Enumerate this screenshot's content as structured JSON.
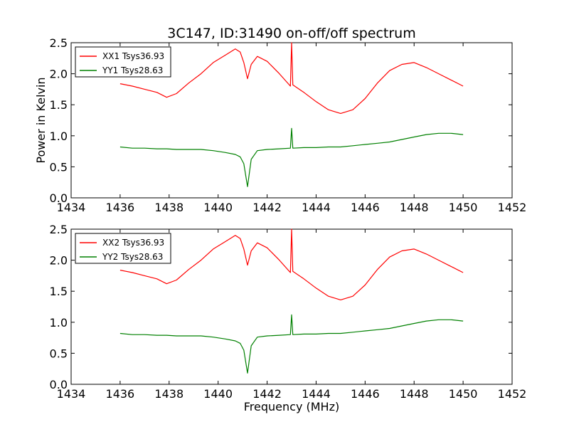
{
  "chart_data": [
    {
      "type": "line",
      "title": "3C147, ID:31490 on-off/off spectrum",
      "xlabel": "",
      "ylabel": "Power in Kelvin",
      "xlim": [
        1434,
        1452
      ],
      "ylim": [
        0.0,
        2.5
      ],
      "xticks": [
        "1434",
        "1436",
        "1438",
        "1440",
        "1442",
        "1444",
        "1446",
        "1448",
        "1450",
        "1452"
      ],
      "yticks": [
        "0.0",
        "0.5",
        "1.0",
        "1.5",
        "2.0",
        "2.5"
      ],
      "grid": false,
      "legend_position": "top-left",
      "x": [
        1436.0,
        1436.5,
        1437.0,
        1437.5,
        1437.9,
        1438.3,
        1438.8,
        1439.3,
        1439.8,
        1440.3,
        1440.7,
        1440.9,
        1441.05,
        1441.2,
        1441.35,
        1441.6,
        1442.0,
        1442.5,
        1442.95,
        1443.0,
        1443.05,
        1443.5,
        1444.0,
        1444.5,
        1445.0,
        1445.5,
        1446.0,
        1446.5,
        1447.0,
        1447.5,
        1448.0,
        1448.5,
        1449.0,
        1449.5,
        1450.0
      ],
      "series": [
        {
          "name": "XX1 Tsys36.93",
          "color": "#ff0000",
          "values": [
            1.84,
            1.8,
            1.75,
            1.7,
            1.62,
            1.68,
            1.85,
            2.0,
            2.18,
            2.3,
            2.4,
            2.35,
            2.18,
            1.92,
            2.15,
            2.28,
            2.2,
            2.0,
            1.8,
            2.5,
            1.82,
            1.7,
            1.55,
            1.42,
            1.36,
            1.42,
            1.6,
            1.85,
            2.05,
            2.15,
            2.18,
            2.1,
            2.0,
            1.9,
            1.8
          ]
        },
        {
          "name": "YY1 Tsys28.63",
          "color": "#008000",
          "values": [
            0.82,
            0.8,
            0.8,
            0.79,
            0.79,
            0.78,
            0.78,
            0.78,
            0.76,
            0.73,
            0.7,
            0.66,
            0.55,
            0.18,
            0.62,
            0.76,
            0.78,
            0.79,
            0.8,
            1.12,
            0.8,
            0.81,
            0.81,
            0.82,
            0.82,
            0.84,
            0.86,
            0.88,
            0.9,
            0.94,
            0.98,
            1.02,
            1.04,
            1.04,
            1.02
          ]
        }
      ]
    },
    {
      "type": "line",
      "title": "",
      "xlabel": "Frequency (MHz)",
      "ylabel": "",
      "xlim": [
        1434,
        1452
      ],
      "ylim": [
        0.0,
        2.5
      ],
      "xticks": [
        "1434",
        "1436",
        "1438",
        "1440",
        "1442",
        "1444",
        "1446",
        "1448",
        "1450",
        "1452"
      ],
      "yticks": [
        "0.0",
        "0.5",
        "1.0",
        "1.5",
        "2.0",
        "2.5"
      ],
      "grid": false,
      "legend_position": "top-left",
      "x": [
        1436.0,
        1436.5,
        1437.0,
        1437.5,
        1437.9,
        1438.3,
        1438.8,
        1439.3,
        1439.8,
        1440.3,
        1440.7,
        1440.9,
        1441.05,
        1441.2,
        1441.35,
        1441.6,
        1442.0,
        1442.5,
        1442.95,
        1443.0,
        1443.05,
        1443.5,
        1444.0,
        1444.5,
        1445.0,
        1445.5,
        1446.0,
        1446.5,
        1447.0,
        1447.5,
        1448.0,
        1448.5,
        1449.0,
        1449.5,
        1450.0
      ],
      "series": [
        {
          "name": "XX2 Tsys36.93",
          "color": "#ff0000",
          "values": [
            1.84,
            1.8,
            1.75,
            1.7,
            1.62,
            1.68,
            1.85,
            2.0,
            2.18,
            2.3,
            2.4,
            2.35,
            2.18,
            1.92,
            2.15,
            2.28,
            2.2,
            2.0,
            1.8,
            2.5,
            1.82,
            1.7,
            1.55,
            1.42,
            1.36,
            1.42,
            1.6,
            1.85,
            2.05,
            2.15,
            2.18,
            2.1,
            2.0,
            1.9,
            1.8
          ]
        },
        {
          "name": "YY2 Tsys28.63",
          "color": "#008000",
          "values": [
            0.82,
            0.8,
            0.8,
            0.79,
            0.79,
            0.78,
            0.78,
            0.78,
            0.76,
            0.73,
            0.7,
            0.66,
            0.55,
            0.18,
            0.62,
            0.76,
            0.78,
            0.79,
            0.8,
            1.12,
            0.8,
            0.81,
            0.81,
            0.82,
            0.82,
            0.84,
            0.86,
            0.88,
            0.9,
            0.94,
            0.98,
            1.02,
            1.04,
            1.04,
            1.02
          ]
        }
      ]
    }
  ]
}
